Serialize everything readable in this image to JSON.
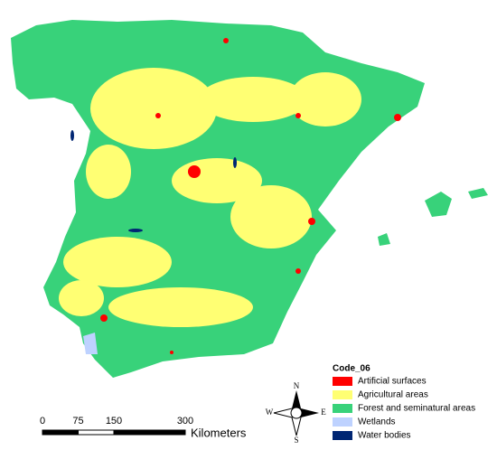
{
  "legend": {
    "title": "Code_06",
    "items": [
      {
        "label": "Artificial surfaces",
        "color": "#ff0000"
      },
      {
        "label": "Agricultural areas",
        "color": "#ffff73"
      },
      {
        "label": "Forest and seminatural areas",
        "color": "#38d27a"
      },
      {
        "label": "Wetlands",
        "color": "#bed2ff"
      },
      {
        "label": "Water bodies",
        "color": "#002673"
      }
    ]
  },
  "scale_bar": {
    "ticks": [
      0,
      75,
      150,
      300
    ],
    "unit": "Kilometers"
  },
  "compass": {
    "north": "N",
    "south": "S",
    "east": "E",
    "west": "W"
  }
}
